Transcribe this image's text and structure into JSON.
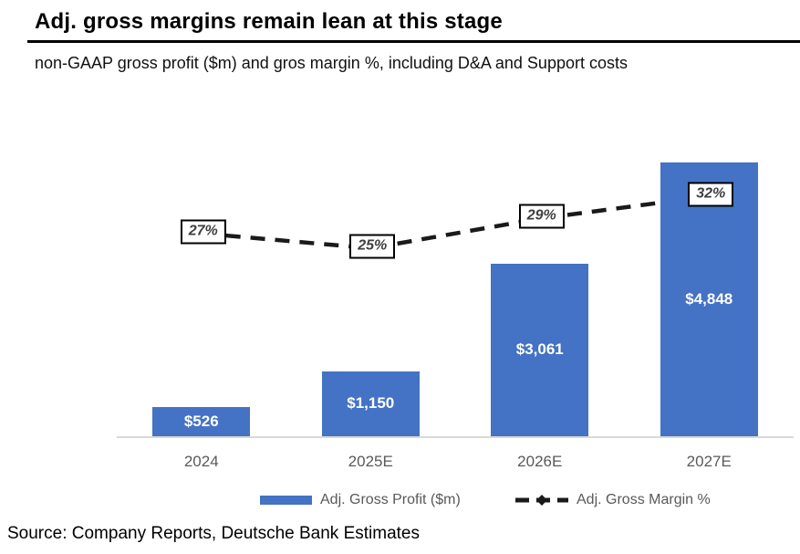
{
  "header": {
    "title": "Adj. gross margins remain lean at this stage",
    "subtitle": "non-GAAP gross profit ($m) and gros margin %, including D&A and Support costs"
  },
  "legend": {
    "bar_label": "Adj. Gross Profit ($m)",
    "line_label": "Adj. Gross Margin %"
  },
  "source_line": "Source: Company Reports, Deutsche Bank Estimates",
  "colors": {
    "bar_fill": "#4472c4",
    "line_stroke": "#1a1a1a",
    "axis_line": "#d9d9d9",
    "muted_text": "#595959",
    "pct_text": "#3f3f3f"
  },
  "chart_data": {
    "type": "bar",
    "subtype": "combo-bar-dashed-line",
    "title": "Adj. gross margins remain lean at this stage",
    "subtitle": "non-GAAP gross profit ($m) and gros margin %, including D&A and Support costs",
    "categories": [
      "2024",
      "2025E",
      "2026E",
      "2027E"
    ],
    "series": [
      {
        "name": "Adj. Gross Profit ($m)",
        "type": "bar",
        "values": [
          526,
          1150,
          3061,
          4848
        ],
        "labels": [
          "$526",
          "$1,150",
          "$3,061",
          "$4,848"
        ],
        "label_position": "inside-center",
        "label_color": "#ffffff"
      },
      {
        "name": "Adj. Gross Margin %",
        "type": "line",
        "line_style": "dashed",
        "axis": "secondary",
        "values": [
          27,
          25,
          29,
          32
        ],
        "labels": [
          "27%",
          "25%",
          "29%",
          "32%"
        ],
        "label_style": "boxed"
      }
    ],
    "xlabel": "",
    "ylabel": "",
    "grid": false,
    "y_axis_visible": false,
    "legend_position": "bottom"
  }
}
